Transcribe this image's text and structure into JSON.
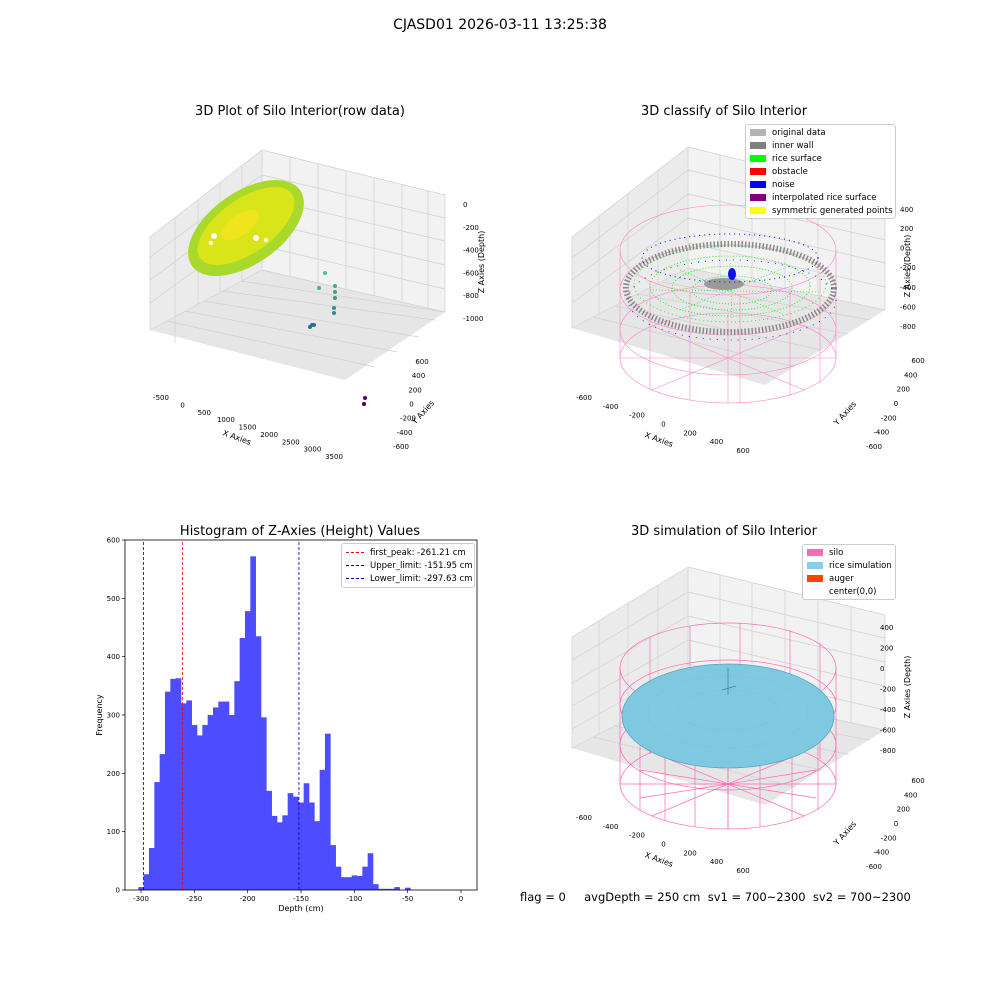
{
  "suptitle": "CJASD01 2026-03-11 13:25:38",
  "panels": {
    "raw": {
      "title": "3D Plot of Silo Interior(row data)",
      "xlabel": "X Axies",
      "ylabel": "Y Axies",
      "zlabel": "Z Axies (Depth)",
      "xticks": [
        "-500",
        "0",
        "500",
        "1000",
        "1500",
        "2000",
        "2500",
        "3000",
        "3500"
      ],
      "yticks": [
        "600",
        "400",
        "200",
        "0",
        "-200",
        "-400",
        "-600"
      ],
      "zticks": [
        "0",
        "-200",
        "-400",
        "-600",
        "-800",
        "-1000"
      ]
    },
    "classify": {
      "title": "3D classify of Silo Interior",
      "xlabel": "X Axies",
      "ylabel": "Y Axies",
      "zlabel": "Z Axies (Depth)",
      "xticks": [
        "-600",
        "-400",
        "-200",
        "0",
        "200",
        "400",
        "600"
      ],
      "yticks": [
        "600",
        "400",
        "200",
        "0",
        "-200",
        "-400",
        "-600"
      ],
      "zticks": [
        "200",
        "0",
        "-200",
        "-400",
        "-600",
        "-800"
      ],
      "zticks_partial_top": "400",
      "legend": [
        {
          "label": "original data",
          "color": "#b3b3b3"
        },
        {
          "label": "inner wall",
          "color": "#808080"
        },
        {
          "label": "rice surface",
          "color": "#00ff00"
        },
        {
          "label": "obstacle",
          "color": "#ff0000"
        },
        {
          "label": "noise",
          "color": "#0000ff"
        },
        {
          "label": "interpolated rice surface",
          "color": "#800080"
        },
        {
          "label": "symmetric generated points",
          "color": "#ffff00"
        }
      ]
    },
    "simulation": {
      "title": "3D simulation of Silo Interior",
      "xlabel": "X Axies",
      "ylabel": "Y Axies",
      "zlabel": "Z Axies (Depth)",
      "xticks": [
        "-600",
        "-400",
        "-200",
        "0",
        "200",
        "400",
        "600"
      ],
      "yticks": [
        "600",
        "400",
        "200",
        "0",
        "-200",
        "-400",
        "-600"
      ],
      "zticks": [
        "400",
        "200",
        "0",
        "-200",
        "-400",
        "-600",
        "-800"
      ],
      "legend": [
        {
          "label": "silo",
          "color": "#ff69b4"
        },
        {
          "label": "rice simulation",
          "color": "#87ceeb"
        },
        {
          "label": "auger",
          "color": "#ff4500"
        },
        {
          "label": "center(0,0)",
          "color": "#ffffff"
        }
      ],
      "footer": "flag = 0     avgDepth = 250 cm  sv1 = 700~2300  sv2 = 700~2300"
    }
  },
  "chart_data": [
    {
      "type": "bar",
      "title": "Histogram of Z-Axies (Height) Values",
      "xlabel": "Depth (cm)",
      "ylabel": "Frequency",
      "xlim": [
        -315,
        15
      ],
      "ylim": [
        0,
        600
      ],
      "xticks": [
        -300,
        -250,
        -200,
        -150,
        -100,
        -50,
        0
      ],
      "yticks": [
        0,
        100,
        200,
        300,
        400,
        500,
        600
      ],
      "bin_start": -302.5,
      "bin_width": 5,
      "color": "#4d4dff",
      "values": [
        5,
        27,
        72,
        185,
        233,
        340,
        362,
        363,
        320,
        325,
        283,
        265,
        283,
        300,
        313,
        323,
        323,
        300,
        358,
        432,
        478,
        572,
        435,
        296,
        170,
        127,
        116,
        128,
        166,
        160,
        150,
        183,
        150,
        118,
        206,
        268,
        77,
        40,
        22,
        22,
        25,
        24,
        40,
        63,
        10,
        2,
        2,
        2,
        5,
        0,
        4
      ],
      "vlines": [
        {
          "label": "first_peak: -261.21 cm",
          "x": -261.21,
          "color": "#ff0000"
        },
        {
          "label": "Upper_limit: -151.95 cm",
          "x": -151.95,
          "color": "#0000aa"
        },
        {
          "label": "Lower_limit: -297.63 cm",
          "x": -297.63,
          "color": "#0000aa"
        }
      ],
      "legend_placement": "top-right"
    }
  ]
}
